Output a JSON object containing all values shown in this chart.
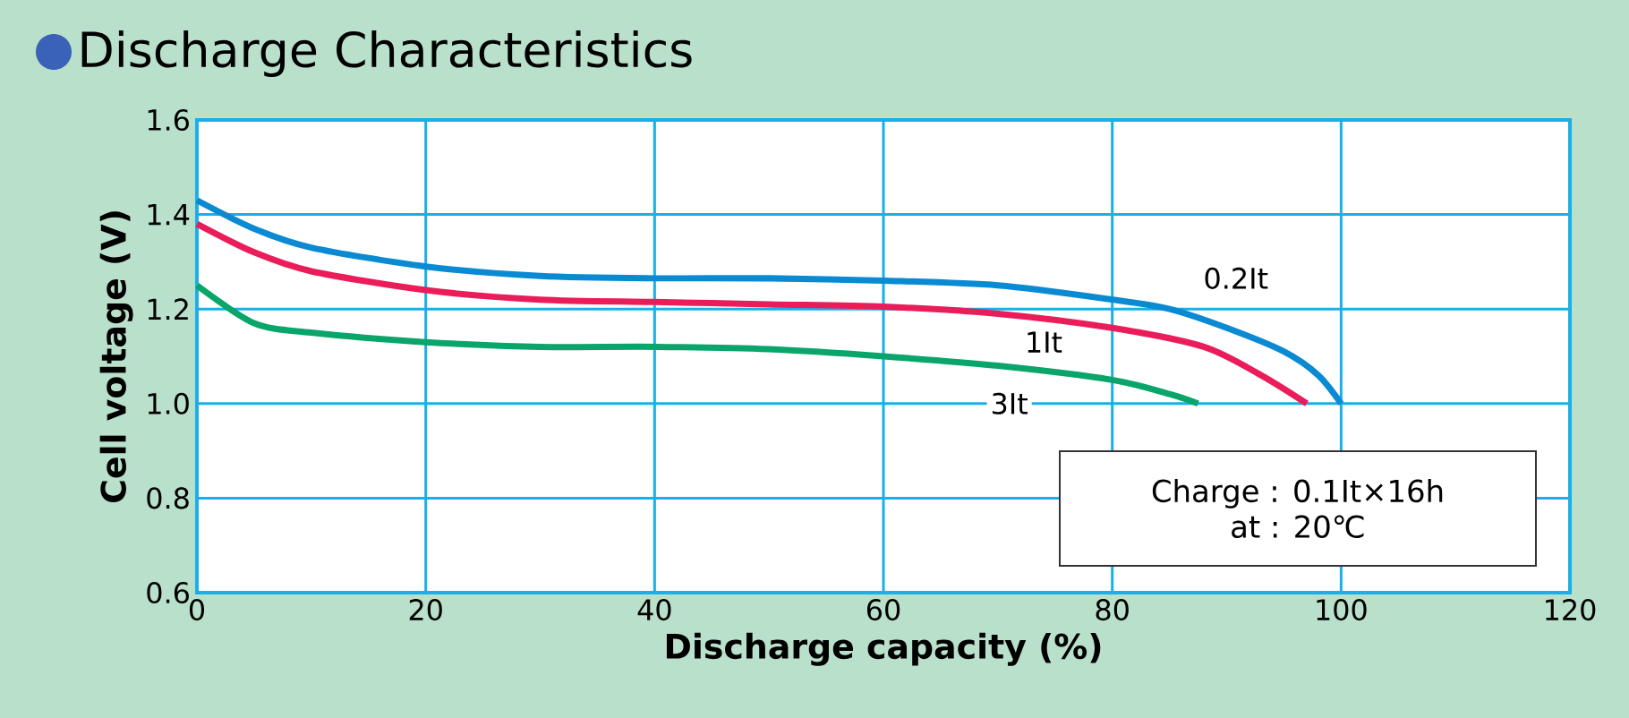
{
  "chart_data": {
    "type": "line",
    "title": "Discharge Characteristics",
    "xlabel": "Discharge capacity (%)",
    "ylabel": "Cell voltage (V)",
    "xlim": [
      0,
      120
    ],
    "ylim": [
      0.6,
      1.6
    ],
    "xticks": [
      0,
      20,
      40,
      60,
      80,
      100,
      120
    ],
    "yticks": [
      0.6,
      0.8,
      {
        "value": 1,
        "label": "1.0"
      },
      1.2,
      1.4,
      1.6
    ],
    "grid": true,
    "legend": false,
    "marker": "none",
    "line_style": "solid",
    "annotations": [
      "Charge : 0.1It×16h",
      "at : 20℃"
    ],
    "series": [
      {
        "name": "0.2It",
        "color": "#0a8ad2",
        "x": [
          0,
          5,
          10,
          20,
          30,
          40,
          50,
          60,
          70,
          80,
          85,
          90,
          95,
          98,
          100
        ],
        "values": [
          1.43,
          1.37,
          1.33,
          1.29,
          1.27,
          1.265,
          1.265,
          1.26,
          1.25,
          1.22,
          1.2,
          1.16,
          1.11,
          1.06,
          1.0
        ]
      },
      {
        "name": "1It",
        "color": "#ea1c5a",
        "x": [
          0,
          5,
          10,
          20,
          30,
          40,
          50,
          60,
          70,
          80,
          88,
          93,
          97
        ],
        "values": [
          1.38,
          1.32,
          1.28,
          1.24,
          1.22,
          1.215,
          1.21,
          1.205,
          1.19,
          1.16,
          1.12,
          1.06,
          1.0
        ]
      },
      {
        "name": "3It",
        "color": "#0aa56a",
        "x": [
          0,
          5,
          10,
          20,
          30,
          40,
          50,
          60,
          70,
          80,
          85,
          87.5
        ],
        "values": [
          1.25,
          1.17,
          1.15,
          1.13,
          1.12,
          1.12,
          1.115,
          1.1,
          1.08,
          1.05,
          1.02,
          1.0
        ]
      }
    ]
  }
}
